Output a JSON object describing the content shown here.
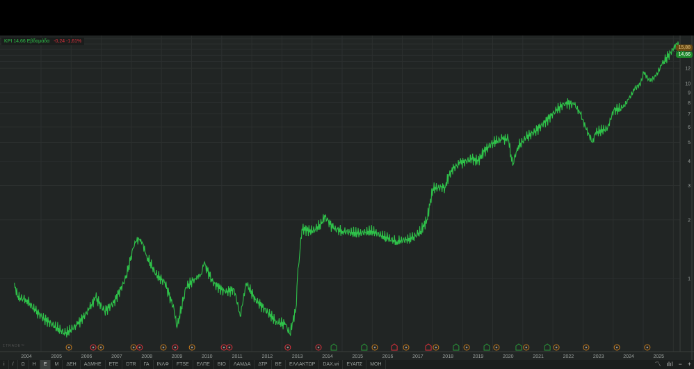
{
  "legend": {
    "symbol_label": "ΚΡΙ 14,66 Εβδομάδα",
    "change": "-0,24 -1,61%"
  },
  "badges": {
    "high": "15,88",
    "last": "14,66"
  },
  "brand": "ΣTRADE™",
  "colors": {
    "line": "#2fc24a",
    "down": "#e0313c",
    "dividend": "#c77a1c",
    "earnings_up": "#2a9a3a",
    "grid": "#2c302f",
    "bg": "#212524"
  },
  "toolbar": {
    "items": [
      "i",
      "/",
      "Ω",
      "Η",
      "Ε",
      "Μ",
      "ΔΕΗ",
      "ΑΔΜΗΕ",
      "ΕΤΕ",
      "DTR",
      "ΓΑ",
      "ΙΝΛΦ",
      "FTSE",
      "ΕΛΠΕ",
      "ΒΙΟ",
      "ΛΑΜΔΑ",
      "ΔΤΡ",
      "ΒΕ",
      "ΕΛΛΑΚΤΩΡ",
      "DAX.wi",
      "ΕΥΑΠΣ",
      "ΜΟΗ"
    ],
    "selected": "Ε",
    "right": {
      "line_chart": "line-chart-icon",
      "bar_chart": "bar-chart-icon",
      "zoom_out": "−",
      "zoom_in": "+"
    }
  },
  "chart_data": {
    "type": "line",
    "title": "ΚΡΙ Εβδομάδα",
    "yscale": "log",
    "ylim": [
      0.48,
      17.5
    ],
    "xlim": [
      2003.55,
      2025.95
    ],
    "y_ticks": [
      "1",
      "2",
      "3",
      "4",
      "5",
      "6",
      "7",
      "8",
      "9",
      "10",
      "12"
    ],
    "y_tick_values": [
      1,
      2,
      3,
      4,
      5,
      6,
      7,
      8,
      9,
      10,
      12
    ],
    "x_ticks": [
      "2004",
      "2005",
      "2006",
      "2007",
      "2008",
      "2009",
      "2010",
      "2011",
      "2012",
      "2013",
      "2014",
      "2015",
      "2016",
      "2017",
      "2018",
      "2019",
      "2020",
      "2021",
      "2022",
      "2023",
      "2024",
      "2025"
    ],
    "series": [
      {
        "name": "ΚΡΙ",
        "x": [
          2003.6,
          2003.7,
          2004.0,
          2004.3,
          2004.6,
          2005.0,
          2005.3,
          2005.7,
          2006.1,
          2006.3,
          2006.6,
          2006.9,
          2007.3,
          2007.6,
          2007.8,
          2008.0,
          2008.3,
          2008.6,
          2008.9,
          2009.0,
          2009.3,
          2009.6,
          2009.8,
          2009.9,
          2010.2,
          2010.6,
          2010.9,
          2011.1,
          2011.3,
          2011.6,
          2011.9,
          2012.3,
          2012.6,
          2012.75,
          2012.95,
          2013.0,
          2013.15,
          2013.5,
          2013.8,
          2013.9,
          2014.2,
          2014.5,
          2015.0,
          2015.5,
          2016.0,
          2016.3,
          2016.8,
          2017.1,
          2017.3,
          2017.5,
          2017.9,
          2018.1,
          2018.4,
          2018.8,
          2019.0,
          2019.2,
          2019.5,
          2019.8,
          2020.0,
          2020.15,
          2020.3,
          2020.6,
          2020.9,
          2021.2,
          2021.6,
          2021.9,
          2022.2,
          2022.4,
          2022.6,
          2022.8,
          2022.9,
          2023.3,
          2023.5,
          2023.8,
          2024.0,
          2024.2,
          2024.4,
          2024.5,
          2024.7,
          2024.9,
          2025.1,
          2025.4,
          2025.6,
          2025.7,
          2025.85
        ],
        "values": [
          0.95,
          0.8,
          0.78,
          0.68,
          0.62,
          0.56,
          0.52,
          0.58,
          0.7,
          0.8,
          0.68,
          0.75,
          1.0,
          1.55,
          1.6,
          1.3,
          1.05,
          0.95,
          0.7,
          0.56,
          0.9,
          1.0,
          1.05,
          1.2,
          0.95,
          0.85,
          0.88,
          0.64,
          0.95,
          0.78,
          0.7,
          0.6,
          0.58,
          0.52,
          0.7,
          1.0,
          1.8,
          1.75,
          1.9,
          2.1,
          1.8,
          1.75,
          1.7,
          1.75,
          1.6,
          1.55,
          1.6,
          1.75,
          2.0,
          2.9,
          2.95,
          3.6,
          3.9,
          4.1,
          4.0,
          4.5,
          5.0,
          5.2,
          5.2,
          3.8,
          4.7,
          5.3,
          5.7,
          6.3,
          7.3,
          8.0,
          7.8,
          7.0,
          5.8,
          5.0,
          5.6,
          5.9,
          7.3,
          7.5,
          8.3,
          9.4,
          10.0,
          11.5,
          10.3,
          10.9,
          12.5,
          14.5,
          16.0,
          15.5,
          14.66
        ]
      }
    ],
    "events": [
      {
        "t": 2005.41,
        "type": "D"
      },
      {
        "t": 2006.22,
        "type": "S"
      },
      {
        "t": 2006.47,
        "type": "D"
      },
      {
        "t": 2007.56,
        "type": "D"
      },
      {
        "t": 2007.76,
        "type": "S"
      },
      {
        "t": 2008.55,
        "type": "D"
      },
      {
        "t": 2008.94,
        "type": "S"
      },
      {
        "t": 2009.5,
        "type": "D"
      },
      {
        "t": 2010.56,
        "type": "S"
      },
      {
        "t": 2010.74,
        "type": "S"
      },
      {
        "t": 2012.68,
        "type": "S"
      },
      {
        "t": 2013.7,
        "type": "S"
      },
      {
        "t": 2014.21,
        "type": "E+"
      },
      {
        "t": 2015.22,
        "type": "E+"
      },
      {
        "t": 2015.57,
        "type": "D"
      },
      {
        "t": 2016.22,
        "type": "E-"
      },
      {
        "t": 2016.61,
        "type": "D"
      },
      {
        "t": 2017.35,
        "type": "E-"
      },
      {
        "t": 2017.6,
        "type": "D"
      },
      {
        "t": 2018.27,
        "type": "E+"
      },
      {
        "t": 2018.62,
        "type": "D"
      },
      {
        "t": 2019.29,
        "type": "E+"
      },
      {
        "t": 2019.61,
        "type": "D"
      },
      {
        "t": 2020.35,
        "type": "E+"
      },
      {
        "t": 2020.6,
        "type": "D"
      },
      {
        "t": 2021.3,
        "type": "E+"
      },
      {
        "t": 2021.6,
        "type": "D"
      },
      {
        "t": 2022.59,
        "type": "D"
      },
      {
        "t": 2023.61,
        "type": "D"
      },
      {
        "t": 2024.62,
        "type": "D"
      }
    ]
  }
}
